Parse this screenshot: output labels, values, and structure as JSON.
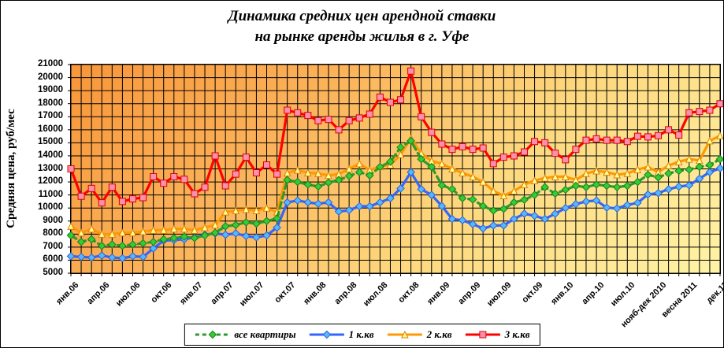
{
  "chart": {
    "title_line1": "Динамика средних цен арендной ставки",
    "title_line2": "на рынке аренды жилья в г. Уфе",
    "y_axis_title": "Средняя цена, руб/мес"
  },
  "chart_data": {
    "type": "line",
    "title": "Динамика средних цен арендной ставки на рынке аренды жилья в г. Уфе",
    "xlabel": "",
    "ylabel": "Средняя цена, руб/мес",
    "ylim": [
      5000,
      21000
    ],
    "ytick_step": 1000,
    "grid": true,
    "legend_position": "bottom",
    "plot_bg_gradient": [
      "#F8963A",
      "#FFF3A6"
    ],
    "n_categories": 64,
    "label_every_n_categories": 3,
    "x_labels_shown": [
      "янв.06",
      "апр.06",
      "июл.06",
      "окт.06",
      "янв.07",
      "апр.07",
      "июл.07",
      "окт.07",
      "янв.08",
      "апр.08",
      "июл.08",
      "окт.08",
      "янв.09",
      "апр.09",
      "июл.09",
      "окт.09",
      "янв.10",
      "апр.10",
      "июл.10",
      "нояб-дек 2010",
      "весна 2011",
      "дек.11"
    ],
    "series": [
      {
        "id": "all-flats",
        "name": "все квартиры",
        "color": "#2E9A2E",
        "dashed": true,
        "marker": "diamond",
        "marker_fill": "#33CC33",
        "marker_stroke": "#1E7D1E",
        "values": [
          7900,
          7400,
          7600,
          7100,
          7200,
          7100,
          7200,
          7300,
          7400,
          7600,
          7700,
          7800,
          7700,
          7900,
          8100,
          8600,
          8700,
          8900,
          8800,
          9000,
          9200,
          12150,
          12000,
          11800,
          11650,
          11950,
          12150,
          12450,
          12750,
          12500,
          13150,
          13550,
          14650,
          15150,
          13750,
          13150,
          11750,
          11450,
          10750,
          10650,
          10150,
          9800,
          9930,
          10430,
          10630,
          11000,
          11600,
          11100,
          11400,
          11700,
          11600,
          11800,
          11700,
          11600,
          11700,
          12000,
          12550,
          12350,
          12650,
          12850,
          12950,
          13150,
          13300,
          13750
        ]
      },
      {
        "id": "1-room",
        "name": "1 к.кв",
        "color": "#3366FF",
        "dashed": false,
        "marker": "diamond",
        "marker_fill": "#55B8FF",
        "marker_stroke": "#2E5FD6",
        "values": [
          6300,
          6250,
          6200,
          6350,
          6200,
          6150,
          6300,
          6250,
          6900,
          7500,
          7550,
          7600,
          7750,
          7950,
          8050,
          7950,
          8050,
          7850,
          7750,
          7900,
          8500,
          10430,
          10570,
          10430,
          10330,
          10430,
          9730,
          9830,
          10130,
          10130,
          10430,
          10740,
          11500,
          12750,
          11440,
          11000,
          10150,
          9160,
          9060,
          8760,
          8430,
          8660,
          8660,
          9160,
          9560,
          9400,
          9160,
          9560,
          10000,
          10300,
          10500,
          10570,
          10030,
          9970,
          10230,
          10400,
          11040,
          11140,
          11440,
          11640,
          11740,
          12250,
          12750,
          13050
        ]
      },
      {
        "id": "2-room",
        "name": "2 к.кв",
        "color": "#FF9900",
        "dashed": false,
        "marker": "triangle",
        "marker_fill": "#FFFF99",
        "marker_stroke": "#E08000",
        "values": [
          8600,
          8100,
          8400,
          8000,
          8000,
          8100,
          8100,
          8200,
          8300,
          8300,
          8400,
          8400,
          8300,
          8500,
          8700,
          9700,
          9800,
          9900,
          9800,
          10000,
          9700,
          12700,
          12900,
          12700,
          12650,
          12500,
          12600,
          13000,
          13400,
          12900,
          13200,
          13300,
          14100,
          15350,
          14200,
          13600,
          13400,
          13000,
          12700,
          12400,
          12000,
          11300,
          10950,
          11300,
          11800,
          12100,
          12300,
          12400,
          12400,
          12150,
          12650,
          12850,
          12750,
          12550,
          12650,
          12950,
          13150,
          12750,
          13250,
          13550,
          13750,
          13650,
          15150,
          15550
        ]
      },
      {
        "id": "3-room",
        "name": "3 к.кв",
        "color": "#FF0000",
        "dashed": false,
        "marker": "square",
        "marker_fill": "#FA8FAE",
        "marker_stroke": "#E00000",
        "values": [
          13000,
          10900,
          11500,
          10400,
          11600,
          10500,
          10700,
          10800,
          12400,
          11900,
          12400,
          12200,
          11100,
          11600,
          14000,
          11700,
          12600,
          13900,
          12700,
          13300,
          12600,
          17500,
          17300,
          17100,
          16700,
          16800,
          16000,
          16700,
          16900,
          17200,
          18500,
          18100,
          18300,
          20500,
          17000,
          15800,
          14900,
          14500,
          14700,
          14500,
          14600,
          13400,
          13900,
          14000,
          14300,
          15100,
          15000,
          14200,
          13700,
          14500,
          15200,
          15300,
          15200,
          15200,
          15100,
          15500,
          15450,
          15550,
          16000,
          15600,
          17300,
          17400,
          17500,
          18000
        ]
      }
    ]
  }
}
